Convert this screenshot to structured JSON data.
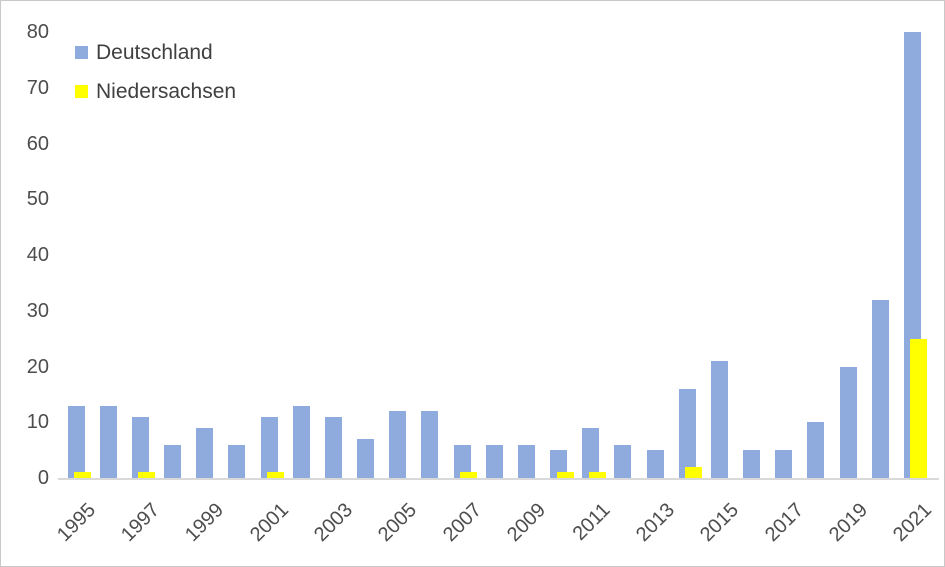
{
  "chart_data": {
    "type": "bar",
    "categories": [
      "1995",
      "1996",
      "1997",
      "1998",
      "1999",
      "2000",
      "2001",
      "2002",
      "2003",
      "2004",
      "2005",
      "2006",
      "2007",
      "2008",
      "2009",
      "2010",
      "2011",
      "2012",
      "2013",
      "2014",
      "2015",
      "2016",
      "2017",
      "2018",
      "2019",
      "2020",
      "2021"
    ],
    "series": [
      {
        "name": "Deutschland",
        "color": "#8FAADC",
        "values": [
          13,
          13,
          11,
          6,
          9,
          6,
          11,
          13,
          11,
          7,
          12,
          12,
          6,
          6,
          6,
          5,
          9,
          6,
          5,
          16,
          21,
          5,
          5,
          10,
          20,
          32,
          80
        ]
      },
      {
        "name": "Niedersachsen",
        "color": "#FFFF00",
        "values": [
          1,
          0,
          1,
          0,
          0,
          0,
          1,
          0,
          0,
          0,
          0,
          0,
          1,
          0,
          0,
          1,
          1,
          0,
          0,
          2,
          0,
          0,
          0,
          0,
          0,
          0,
          25
        ]
      }
    ],
    "ylim": [
      0,
      80
    ],
    "y_ticks": [
      "0",
      "10",
      "20",
      "30",
      "40",
      "50",
      "60",
      "70",
      "80"
    ],
    "x_tick_labels": [
      "1995",
      "1997",
      "1999",
      "2001",
      "2003",
      "2005",
      "2007",
      "2009",
      "2011",
      "2013",
      "2015",
      "2017",
      "2019",
      "2021"
    ],
    "legend_position": "top-left",
    "grid": false,
    "colors": {
      "axis_text": "#4d4d4d",
      "legend_text": "#404040",
      "axis_line": "#d9d9d9",
      "frame_border": "#c8c8c8",
      "background": "#ffffff"
    }
  }
}
